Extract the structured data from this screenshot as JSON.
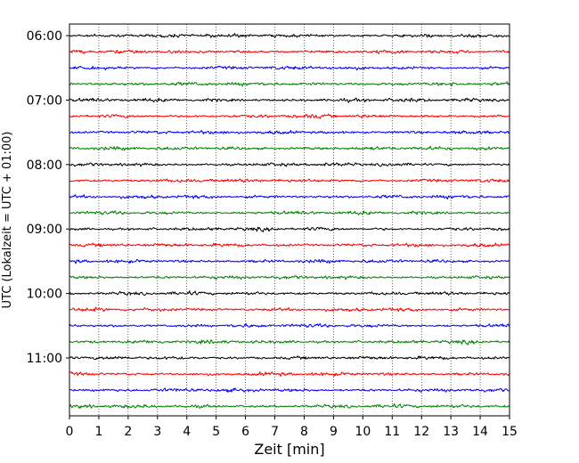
{
  "chart_data": {
    "type": "line",
    "title": "",
    "xlabel": "Zeit  [min]",
    "ylabel": "UTC (Lokalzeit = UTC + 01:00)",
    "xlim": [
      0,
      15
    ],
    "x_ticks": [
      0,
      1,
      2,
      3,
      4,
      5,
      6,
      7,
      8,
      9,
      10,
      11,
      12,
      13,
      14,
      15
    ],
    "y_tick_labels": [
      "06:00",
      "07:00",
      "08:00",
      "09:00",
      "10:00",
      "11:00"
    ],
    "vertical_grid": "dotted at each minute",
    "trace_interval_minutes": 15,
    "traces_start": "06:00",
    "traces_end": "11:45",
    "trace_colors": [
      "#000000",
      "#ff0000",
      "#0000ff",
      "#008000"
    ],
    "signal": "seismic noise, no distinct events"
  }
}
